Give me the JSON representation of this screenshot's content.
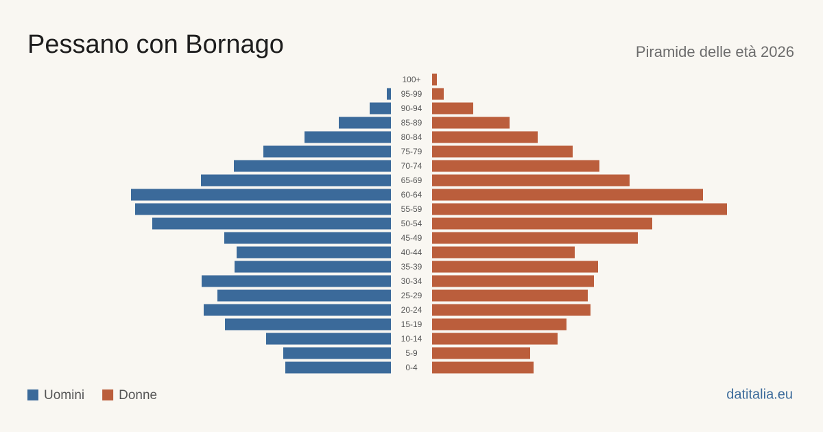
{
  "chart_data": {
    "type": "population-pyramid",
    "title": "Pessano con Bornago",
    "subtitle": "Piramide delle età 2026",
    "source": "datitalia.eu",
    "categories": [
      "100+",
      "95-99",
      "90-94",
      "85-89",
      "80-84",
      "75-79",
      "70-74",
      "65-69",
      "60-64",
      "55-59",
      "50-54",
      "45-49",
      "40-44",
      "35-39",
      "30-34",
      "25-29",
      "20-24",
      "15-19",
      "10-14",
      "5-9",
      "0-4"
    ],
    "series": [
      {
        "name": "Uomini",
        "color": "#3b6a9a",
        "values": [
          0,
          6,
          31,
          76,
          126,
          186,
          229,
          277,
          379,
          373,
          348,
          243,
          225,
          228,
          276,
          253,
          273,
          242,
          182,
          157,
          154
        ]
      },
      {
        "name": "Donne",
        "color": "#bb5e3c",
        "values": [
          7,
          17,
          60,
          113,
          154,
          205,
          244,
          288,
          395,
          430,
          321,
          300,
          208,
          242,
          236,
          227,
          231,
          196,
          183,
          143,
          148
        ]
      }
    ]
  }
}
